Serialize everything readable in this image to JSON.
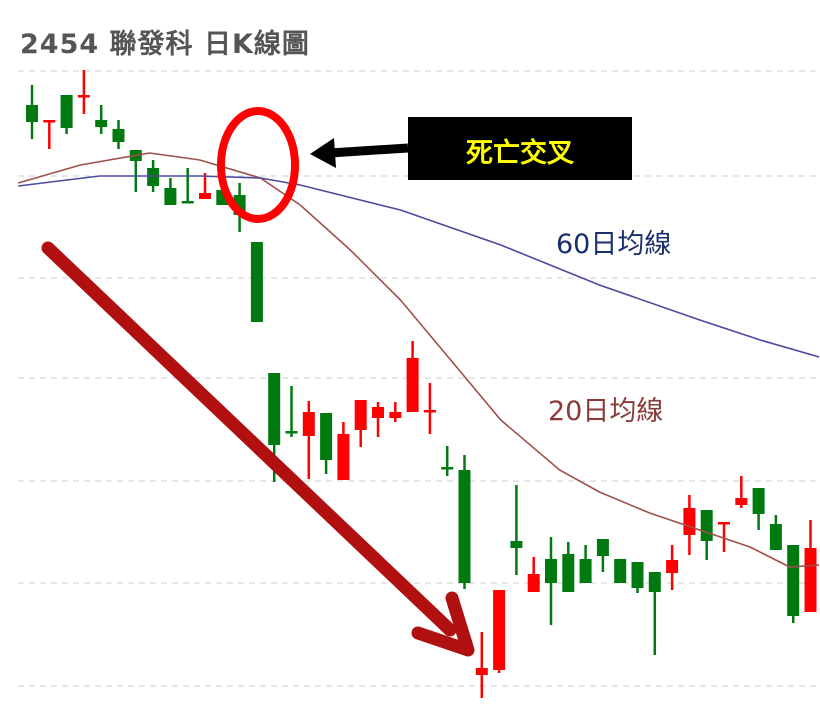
{
  "chart_data": {
    "type": "candlestick",
    "title": "2454 聯發科 日K線圖",
    "xlabel": "",
    "ylabel": "",
    "grid": true,
    "up_color": "#ff0000",
    "down_color": "#007a10",
    "ylim": [
      0,
      690
    ],
    "candles": [
      {
        "o": 609,
        "h": 629,
        "l": 575,
        "c": 592
      },
      {
        "o": 592,
        "h": 594,
        "l": 565,
        "c": 594
      },
      {
        "o": 619,
        "h": 619,
        "l": 580,
        "c": 586
      },
      {
        "o": 617,
        "h": 644,
        "l": 600,
        "c": 619
      },
      {
        "o": 594,
        "h": 609,
        "l": 580,
        "c": 587
      },
      {
        "o": 585,
        "h": 594,
        "l": 565,
        "c": 572
      },
      {
        "o": 564,
        "h": 564,
        "l": 522,
        "c": 553
      },
      {
        "o": 546,
        "h": 554,
        "l": 522,
        "c": 528
      },
      {
        "o": 526,
        "h": 536,
        "l": 509,
        "c": 509
      },
      {
        "o": 513,
        "h": 546,
        "l": 511,
        "c": 511
      },
      {
        "o": 515,
        "h": 541,
        "l": 515,
        "c": 521
      },
      {
        "o": 524,
        "h": 524,
        "l": 509,
        "c": 509
      },
      {
        "o": 519,
        "h": 531,
        "l": 482,
        "c": 499
      },
      {
        "o": 472,
        "h": 472,
        "l": 392,
        "c": 392
      },
      {
        "o": 341,
        "h": 341,
        "l": 232,
        "c": 269
      },
      {
        "o": 283,
        "h": 328,
        "l": 277,
        "c": 281
      },
      {
        "o": 278,
        "h": 313,
        "l": 235,
        "c": 302
      },
      {
        "o": 301,
        "h": 301,
        "l": 240,
        "c": 254
      },
      {
        "o": 234,
        "h": 292,
        "l": 234,
        "c": 280
      },
      {
        "o": 284,
        "h": 314,
        "l": 267,
        "c": 314
      },
      {
        "o": 296,
        "h": 312,
        "l": 277,
        "c": 307
      },
      {
        "o": 296,
        "h": 312,
        "l": 292,
        "c": 302
      },
      {
        "o": 302,
        "h": 373,
        "l": 302,
        "c": 356
      },
      {
        "o": 303,
        "h": 331,
        "l": 280,
        "c": 304
      },
      {
        "o": 247,
        "h": 268,
        "l": 238,
        "c": 246
      },
      {
        "o": 244,
        "h": 259,
        "l": 125,
        "c": 131
      },
      {
        "o": 39,
        "h": 82,
        "l": 16,
        "c": 46
      },
      {
        "o": 44,
        "h": 124,
        "l": 41,
        "c": 124
      },
      {
        "o": 173,
        "h": 229,
        "l": 139,
        "c": 166
      },
      {
        "o": 122,
        "h": 157,
        "l": 122,
        "c": 140
      },
      {
        "o": 155,
        "h": 177,
        "l": 89,
        "c": 131
      },
      {
        "o": 160,
        "h": 172,
        "l": 122,
        "c": 122
      },
      {
        "o": 155,
        "h": 169,
        "l": 131,
        "c": 131
      },
      {
        "o": 175,
        "h": 175,
        "l": 142,
        "c": 158
      },
      {
        "o": 155,
        "h": 155,
        "l": 131,
        "c": 131
      },
      {
        "o": 152,
        "h": 152,
        "l": 121,
        "c": 126
      },
      {
        "o": 142,
        "h": 142,
        "l": 59,
        "c": 122
      },
      {
        "o": 141,
        "h": 169,
        "l": 124,
        "c": 154
      },
      {
        "o": 179,
        "h": 219,
        "l": 159,
        "c": 206
      },
      {
        "o": 204,
        "h": 204,
        "l": 154,
        "c": 173
      },
      {
        "o": 191,
        "h": 192,
        "l": 162,
        "c": 192
      },
      {
        "o": 209,
        "h": 238,
        "l": 206,
        "c": 216
      },
      {
        "o": 226,
        "h": 226,
        "l": 184,
        "c": 200
      },
      {
        "o": 190,
        "h": 199,
        "l": 164,
        "c": 164
      },
      {
        "o": 169,
        "h": 169,
        "l": 91,
        "c": 98
      },
      {
        "o": 102,
        "h": 194,
        "l": 102,
        "c": 166
      }
    ],
    "series": [
      {
        "name": "20日均線",
        "color": "#a0504a",
        "points": [
          [
            0.2,
            531
          ],
          [
            3.8,
            549
          ],
          [
            7.8,
            561
          ],
          [
            10.7,
            554
          ],
          [
            14.2,
            536
          ],
          [
            16.5,
            509
          ],
          [
            19.4,
            464
          ],
          [
            22.3,
            414
          ],
          [
            25.2,
            354
          ],
          [
            28.1,
            294
          ],
          [
            31.5,
            244
          ],
          [
            33.8,
            222
          ],
          [
            36.7,
            201
          ],
          [
            39.6,
            184
          ],
          [
            42.5,
            167
          ],
          [
            44.8,
            147
          ],
          [
            46.5,
            149
          ]
        ]
      },
      {
        "name": "60日均線",
        "color": "#4a4aa0",
        "points": [
          [
            0.2,
            528
          ],
          [
            4.9,
            538
          ],
          [
            10.7,
            538
          ],
          [
            14.2,
            536
          ],
          [
            16.5,
            529
          ],
          [
            22.3,
            504
          ],
          [
            28.1,
            469
          ],
          [
            33.8,
            429
          ],
          [
            39.6,
            394
          ],
          [
            43.1,
            374
          ],
          [
            46.5,
            357
          ]
        ]
      }
    ],
    "annotations": {
      "cross_label": "死亡交叉",
      "cross_label_color": "#ffff00",
      "cross_box_color": "#000000",
      "circle_color": "#ff0000",
      "trend_arrow_color": "#b01010",
      "ma60_label": "60日均線",
      "ma60_label_color": "#1a2e6e",
      "ma20_label": "20日均線",
      "ma20_label_color": "#8b3a3a"
    }
  }
}
